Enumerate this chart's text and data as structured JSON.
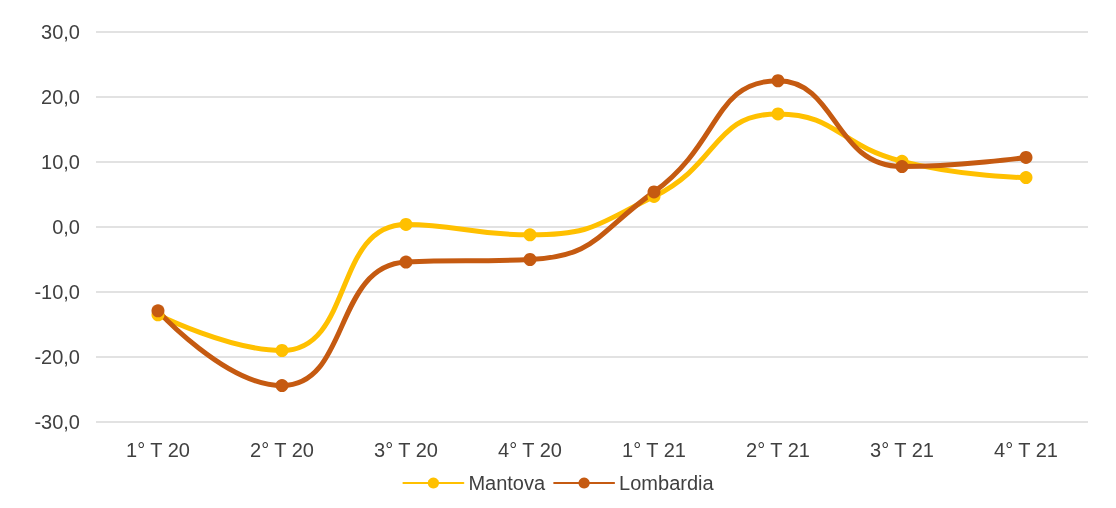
{
  "chart_data": {
    "type": "line",
    "categories": [
      "1° T 20",
      "2° T 20",
      "3° T 20",
      "4° T 20",
      "1° T 21",
      "2° T 21",
      "3° T 21",
      "4° T 21"
    ],
    "series": [
      {
        "name": "Mantova",
        "color": "#ffc000",
        "values": [
          -13.5,
          -19.0,
          0.4,
          -1.2,
          4.7,
          17.4,
          10.1,
          7.6
        ]
      },
      {
        "name": "Lombardia",
        "color": "#c55a11",
        "values": [
          -12.9,
          -24.4,
          -5.4,
          -5.0,
          5.4,
          22.5,
          9.3,
          10.7
        ]
      }
    ],
    "ylim": [
      -30,
      30
    ],
    "yticks": [
      {
        "value": -30,
        "label": "-30,0"
      },
      {
        "value": -20,
        "label": "-20,0"
      },
      {
        "value": -10,
        "label": "-10,0"
      },
      {
        "value": 0,
        "label": "0,0"
      },
      {
        "value": 10,
        "label": "10,0"
      },
      {
        "value": 20,
        "label": "20,0"
      },
      {
        "value": 30,
        "label": "30,0"
      }
    ],
    "grid": "y",
    "legend": "bottom",
    "marker": "circle",
    "line_style": "solid"
  }
}
